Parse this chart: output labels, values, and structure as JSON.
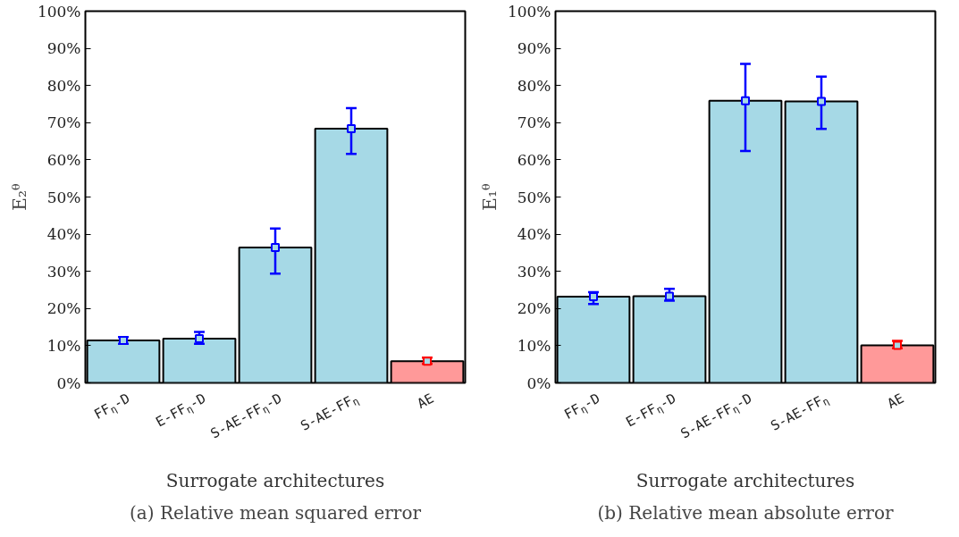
{
  "chart_data": [
    {
      "type": "bar",
      "title": "(a) Relative mean squared error",
      "xlabel": "Surrogate architectures",
      "ylabel": "E₂ᶿ",
      "categories": [
        "FF$_{η}$-D",
        "E-FF$_{η}$-D",
        "S-AE-FF$_{η}$-D",
        "S-AE-FF$_{η}$",
        "AE"
      ],
      "series": [
        {
          "colors": [
            "#a6d9e6",
            "#a6d9e6",
            "#a6d9e6",
            "#a6d9e6",
            "#ff9999"
          ],
          "values": [
            11.4,
            11.9,
            36.4,
            68.4,
            5.8
          ]
        },
        {
          "type": "scatter",
          "x": [
            "FF$_{η}$-D",
            "E-FF$_{η}$-D",
            "S-AE-FF$_{η}$-D",
            "S-AE-FF$_{η}$",
            "AE"
          ],
          "colors": [
            "#0000ff",
            "#0000ff",
            "#0000ff",
            "#0000ff",
            "#ff0000"
          ],
          "values": [
            11.4,
            11.9,
            36.4,
            68.4,
            5.8
          ],
          "errors": [
            [
              10.5,
              12.3
            ],
            [
              10.5,
              13.7
            ],
            [
              29.4,
              41.5
            ],
            [
              61.6,
              73.9
            ],
            [
              5.1,
              6.8
            ]
          ]
        }
      ],
      "marker": "square",
      "ylim": [
        0,
        100
      ],
      "yticks": [
        {
          "value": 0,
          "label": "0%"
        },
        {
          "value": 10,
          "label": "10%"
        },
        {
          "value": 20,
          "label": "20%"
        },
        {
          "value": 30,
          "label": "30%"
        },
        {
          "value": 40,
          "label": "40%"
        },
        {
          "value": 50,
          "label": "50%"
        },
        {
          "value": 60,
          "label": "60%"
        },
        {
          "value": 70,
          "label": "70%"
        },
        {
          "value": 80,
          "label": "80%"
        },
        {
          "value": 90,
          "label": "90%"
        },
        {
          "value": 100,
          "label": "100%"
        }
      ],
      "grid": false
    },
    {
      "type": "bar",
      "title": "(b) Relative mean absolute error",
      "xlabel": "Surrogate architectures",
      "ylabel": "E₁ᶿ",
      "categories": [
        "FF$_{η}$-D",
        "E-FF$_{η}$-D",
        "S-AE-FF$_{η}$-D",
        "S-AE-FF$_{η}$",
        "AE"
      ],
      "series": [
        {
          "colors": [
            "#a6d9e6",
            "#a6d9e6",
            "#a6d9e6",
            "#a6d9e6",
            "#ff9999"
          ],
          "values": [
            23.2,
            23.3,
            75.9,
            75.7,
            10.1
          ]
        },
        {
          "type": "scatter",
          "x": [
            "FF$_{η}$-D",
            "E-FF$_{η}$-D",
            "S-AE-FF$_{η}$-D",
            "S-AE-FF$_{η}$",
            "AE"
          ],
          "colors": [
            "#0000ff",
            "#0000ff",
            "#0000ff",
            "#0000ff",
            "#ff0000"
          ],
          "values": [
            23.2,
            23.3,
            75.9,
            75.7,
            10.1
          ],
          "errors": [
            [
              21.2,
              24.4
            ],
            [
              22.1,
              25.3
            ],
            [
              62.4,
              85.8
            ],
            [
              68.3,
              82.4
            ],
            [
              9.3,
              11.3
            ]
          ]
        }
      ],
      "marker": "square",
      "ylim": [
        0,
        100
      ],
      "yticks": [
        {
          "value": 0,
          "label": "0%"
        },
        {
          "value": 10,
          "label": "10%"
        },
        {
          "value": 20,
          "label": "20%"
        },
        {
          "value": 30,
          "label": "30%"
        },
        {
          "value": 40,
          "label": "40%"
        },
        {
          "value": 50,
          "label": "50%"
        },
        {
          "value": 60,
          "label": "60%"
        },
        {
          "value": 70,
          "label": "70%"
        },
        {
          "value": 80,
          "label": "80%"
        },
        {
          "value": 90,
          "label": "90%"
        },
        {
          "value": 100,
          "label": "100%"
        }
      ],
      "grid": false
    }
  ]
}
